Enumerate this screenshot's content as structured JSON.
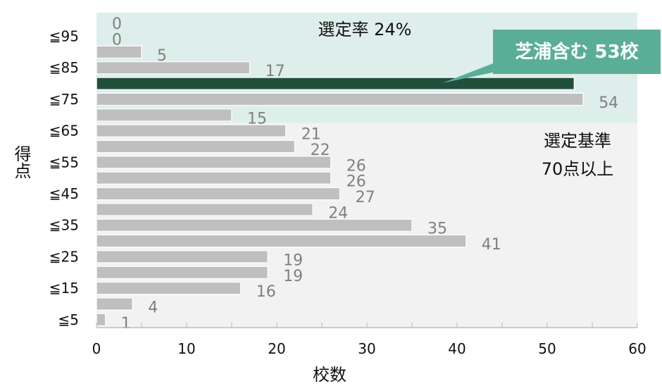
{
  "chart_data": {
    "type": "bar",
    "orientation": "horizontal",
    "categories": [
      "",
      "≦95",
      "",
      "≦85",
      "",
      "≦75",
      "",
      "≦65",
      "",
      "≦55",
      "",
      "≦45",
      "",
      "≦35",
      "",
      "≦25",
      "",
      "≦15",
      "",
      "≦5"
    ],
    "values": [
      0,
      0,
      5,
      17,
      53,
      54,
      15,
      21,
      22,
      26,
      26,
      27,
      24,
      35,
      41,
      19,
      19,
      16,
      4,
      1
    ],
    "highlight_index": 4,
    "xlabel": "校数",
    "ylabel": "得点",
    "xlim": [
      0,
      60
    ],
    "xticks": [
      0,
      10,
      20,
      30,
      40,
      50,
      60
    ],
    "grid": false,
    "shaded_rows": 7,
    "annotations": {
      "rate": "選定率 24%",
      "callout": "芝浦含む 53校",
      "criteria_line1": "選定基準",
      "criteria_line2": "70点以上"
    },
    "colors": {
      "bar": "#bfbfbf",
      "highlight_bar": "#214f3c",
      "shaded_region": "#deeeeb",
      "plot_bg": "#f2f2f2",
      "callout_bg": "#5aae98",
      "data_label": "#808080"
    }
  }
}
